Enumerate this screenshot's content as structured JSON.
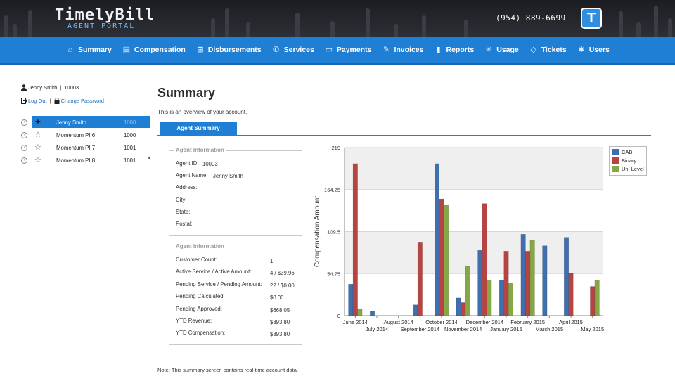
{
  "header": {
    "logo_main": "TimelyBill",
    "logo_sub": "AGENT PORTAL",
    "phone": "(954) 889-6699",
    "badge_letter": "T"
  },
  "nav": {
    "items": [
      {
        "label": "Summary",
        "icon": "home-icon"
      },
      {
        "label": "Compensation",
        "icon": "money-icon"
      },
      {
        "label": "Disbursements",
        "icon": "disbursement-icon"
      },
      {
        "label": "Services",
        "icon": "phone-icon"
      },
      {
        "label": "Payments",
        "icon": "payment-icon"
      },
      {
        "label": "Invoices",
        "icon": "invoice-icon"
      },
      {
        "label": "Reports",
        "icon": "bar-chart-icon"
      },
      {
        "label": "Usage",
        "icon": "usage-icon"
      },
      {
        "label": "Tickets",
        "icon": "ticket-icon"
      },
      {
        "label": "Users",
        "icon": "users-icon"
      }
    ]
  },
  "sidebar": {
    "user_name": "Jenny Smith",
    "user_id": "10003",
    "logout_label": "Log Out",
    "change_password_label": "Change Password",
    "agents": [
      {
        "name": "Jenny Smith",
        "num": "1000",
        "selected": true
      },
      {
        "name": "Momentum PI 6",
        "num": "1000",
        "selected": false
      },
      {
        "name": "Momentum PI 7",
        "num": "1001",
        "selected": false
      },
      {
        "name": "Momentum PI 8",
        "num": "1001",
        "selected": false
      }
    ]
  },
  "main": {
    "title": "Summary",
    "description": "This is an overview of your account.",
    "tab_label": "Agent Summary",
    "note": "Note: This summary screen contains real-time account data."
  },
  "agent_info": {
    "legend": "Agent Information",
    "rows": [
      {
        "label": "Agent ID:",
        "value": "10003"
      },
      {
        "label": "Agent Name:",
        "value": "Jenny Smith"
      },
      {
        "label": "Address:",
        "value": ""
      },
      {
        "label": "City:",
        "value": ""
      },
      {
        "label": "State:",
        "value": ""
      },
      {
        "label": "Postal:",
        "value": ""
      }
    ]
  },
  "account_info": {
    "legend": "Agent Information",
    "rows": [
      {
        "label": "Customer Count:",
        "value": "1"
      },
      {
        "label": "Active Service / Active Amount:",
        "value": "4 / $39.96"
      },
      {
        "label": "Pending Service / Pending Amount:",
        "value": "22 / $0.00"
      },
      {
        "label": "Pending Calculated:",
        "value": "$0.00"
      },
      {
        "label": "Pending Approved:",
        "value": "$668.05"
      },
      {
        "label": "YTD Revenue:",
        "value": "$393.80"
      },
      {
        "label": "YTD Compensation:",
        "value": "$393.80"
      }
    ]
  },
  "chart_data": {
    "type": "bar",
    "ylabel": "Compensation Amount",
    "ylim": [
      0,
      219
    ],
    "yticks": [
      "0",
      "54.75",
      "109.5",
      "164.25",
      "219"
    ],
    "categories": [
      "June 2014",
      "July 2014",
      "August 2014",
      "September 2014",
      "October 2014",
      "November 2014",
      "December 2014",
      "January 2015",
      "February 2015",
      "March 2015",
      "April 2015",
      "May 2015"
    ],
    "series": [
      {
        "name": "CAB",
        "color": "#3f6fae",
        "values": [
          41,
          6,
          0,
          14,
          198,
          23,
          85,
          46,
          106,
          91,
          102,
          0
        ]
      },
      {
        "name": "Binary",
        "color": "#b74343",
        "values": [
          198,
          0,
          0,
          95,
          152,
          17,
          146,
          84,
          84,
          0,
          55,
          38
        ]
      },
      {
        "name": "Uni-Level",
        "color": "#86a844",
        "values": [
          9,
          0,
          0,
          0,
          144,
          64,
          46,
          42,
          98,
          0,
          0,
          46
        ]
      }
    ],
    "legend_position": "right",
    "grid": true
  }
}
